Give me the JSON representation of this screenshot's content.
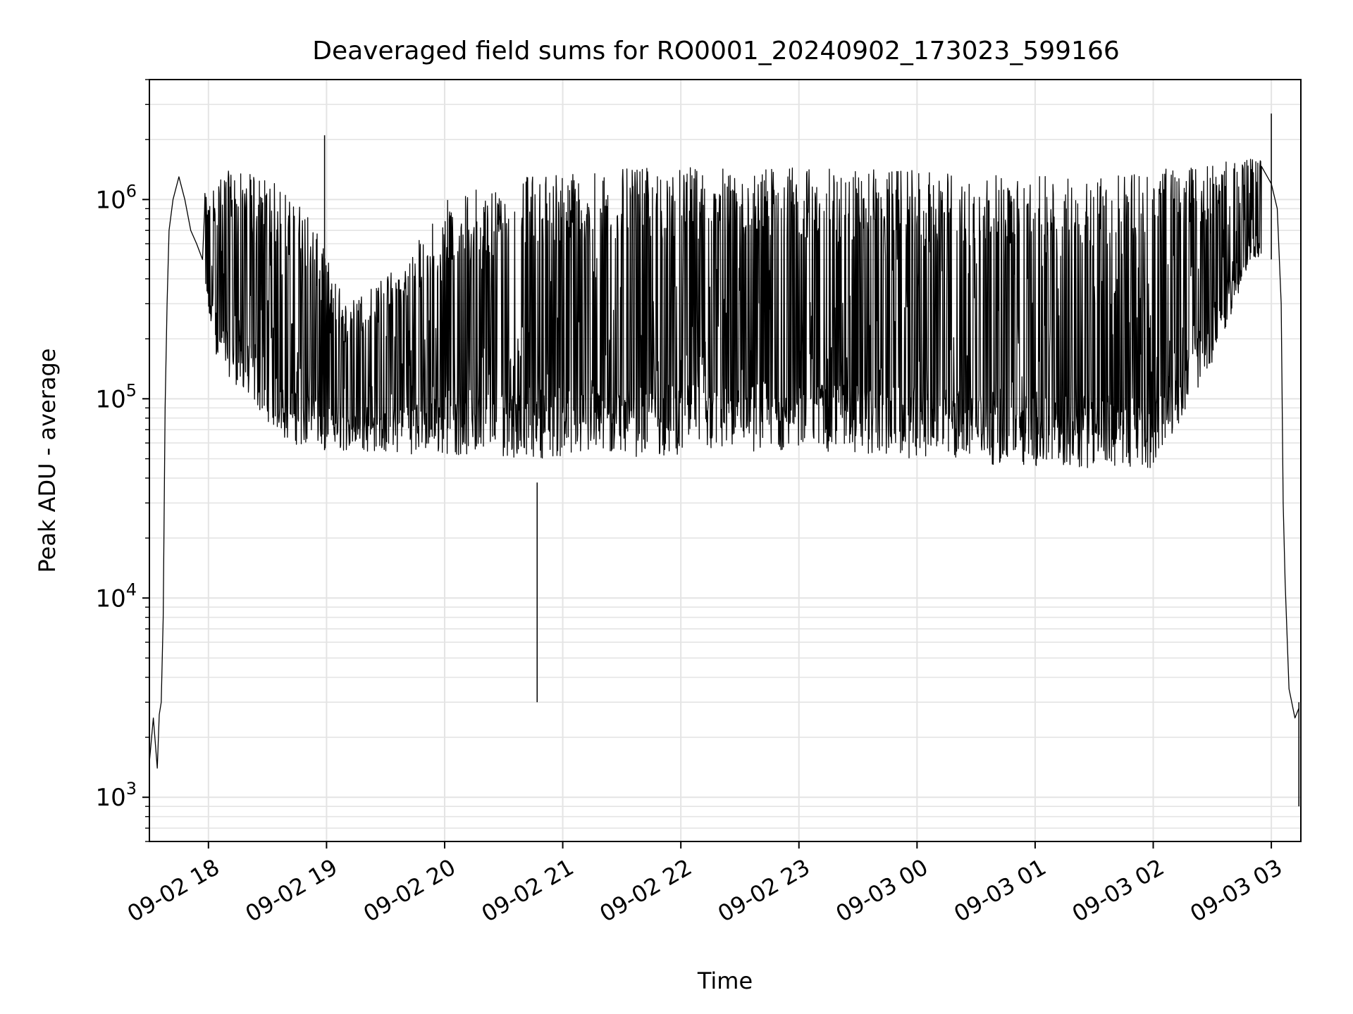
{
  "chart_data": {
    "type": "line",
    "title": "Deaveraged field sums for RO0001_20240902_173023_599166",
    "xlabel": "Time",
    "ylabel": "Peak ADU - average",
    "yscale": "log",
    "ylim": [
      600,
      4000000
    ],
    "xlim": [
      "2024-09-02 17:30",
      "2024-09-03 03:15"
    ],
    "grid": true,
    "legend": false,
    "line_color": "#000000",
    "x_ticks": [
      {
        "t": "2024-09-02 18:00",
        "label": "09-02 18"
      },
      {
        "t": "2024-09-02 19:00",
        "label": "09-02 19"
      },
      {
        "t": "2024-09-02 20:00",
        "label": "09-02 20"
      },
      {
        "t": "2024-09-02 21:00",
        "label": "09-02 21"
      },
      {
        "t": "2024-09-02 22:00",
        "label": "09-02 22"
      },
      {
        "t": "2024-09-02 23:00",
        "label": "09-02 23"
      },
      {
        "t": "2024-09-03 00:00",
        "label": "09-03 00"
      },
      {
        "t": "2024-09-03 01:00",
        "label": "09-03 01"
      },
      {
        "t": "2024-09-03 02:00",
        "label": "09-03 02"
      },
      {
        "t": "2024-09-03 03:00",
        "label": "09-03 03"
      }
    ],
    "y_ticks": [
      {
        "value": 1000,
        "base": "10",
        "exp": "3"
      },
      {
        "value": 10000,
        "base": "10",
        "exp": "4"
      },
      {
        "value": 100000,
        "base": "10",
        "exp": "5"
      },
      {
        "value": 1000000,
        "base": "10",
        "exp": "6"
      }
    ],
    "series": [
      {
        "x": [
          "2024-09-02 17:30",
          "2024-09-02 17:32",
          "2024-09-02 17:34",
          "2024-09-02 17:35",
          "2024-09-02 17:36",
          "2024-09-02 17:37",
          "2024-09-02 17:38",
          "2024-09-02 17:39",
          "2024-09-02 17:40",
          "2024-09-02 17:42",
          "2024-09-02 17:45",
          "2024-09-02 17:48",
          "2024-09-02 17:51",
          "2024-09-02 17:54",
          "2024-09-02 17:57",
          "2024-09-02 18:00",
          "2024-09-02 18:10",
          "2024-09-02 18:20",
          "2024-09-02 18:30",
          "2024-09-02 18:40",
          "2024-09-02 18:50",
          "2024-09-02 19:00",
          "2024-09-02 19:30",
          "2024-09-02 20:00",
          "2024-09-02 20:30",
          "2024-09-02 21:00",
          "2024-09-02 21:30",
          "2024-09-02 22:00",
          "2024-09-02 23:00",
          "2024-09-03 00:00",
          "2024-09-03 01:00",
          "2024-09-03 02:00",
          "2024-09-03 02:30",
          "2024-09-03 02:50",
          "2024-09-03 03:00",
          "2024-09-03 03:03",
          "2024-09-03 03:05",
          "2024-09-03 03:06",
          "2024-09-03 03:07",
          "2024-09-03 03:09",
          "2024-09-03 03:12",
          "2024-09-03 03:14"
        ],
        "y": [
          1500,
          2500,
          1400,
          2600,
          3000,
          8000,
          90000,
          300000,
          700000,
          1000000,
          1300000,
          1000000,
          700000,
          600000,
          500000,
          800000,
          700000,
          300000,
          250000,
          150000,
          120000,
          100000,
          90000,
          85000,
          80000,
          75000,
          80000,
          100000,
          300000,
          400000,
          500000,
          600000,
          700000,
          1000000,
          1200000,
          900000,
          300000,
          30000,
          12000,
          3500,
          2500,
          2800
        ],
        "low_envelope": [
          [
            "2024-09-02 17:55",
            400000
          ],
          [
            "2024-09-02 18:05",
            150000
          ],
          [
            "2024-09-02 18:20",
            100000
          ],
          [
            "2024-09-02 18:40",
            60000
          ],
          [
            "2024-09-02 19:00",
            55000
          ],
          [
            "2024-09-02 20:00",
            52000
          ],
          [
            "2024-09-02 21:00",
            50000
          ],
          [
            "2024-09-02 22:00",
            52000
          ],
          [
            "2024-09-02 23:00",
            55000
          ],
          [
            "2024-09-03 00:00",
            50000
          ],
          [
            "2024-09-03 01:00",
            45000
          ],
          [
            "2024-09-03 02:00",
            45000
          ],
          [
            "2024-09-03 02:30",
            150000
          ],
          [
            "2024-09-03 02:50",
            500000
          ]
        ],
        "high_envelope": [
          [
            "2024-09-02 17:55",
            1000000
          ],
          [
            "2024-09-02 18:10",
            1400000
          ],
          [
            "2024-09-02 18:30",
            1300000
          ],
          [
            "2024-09-02 18:50",
            900000
          ],
          [
            "2024-09-02 19:10",
            300000
          ],
          [
            "2024-09-02 19:40",
            500000
          ],
          [
            "2024-09-02 20:00",
            1000000
          ],
          [
            "2024-09-02 20:30",
            1300000
          ],
          [
            "2024-09-02 21:00",
            1400000
          ],
          [
            "2024-09-02 22:00",
            1450000
          ],
          [
            "2024-09-02 23:00",
            1450000
          ],
          [
            "2024-09-03 00:00",
            1400000
          ],
          [
            "2024-09-03 01:00",
            1300000
          ],
          [
            "2024-09-03 02:00",
            1400000
          ],
          [
            "2024-09-03 02:50",
            1600000
          ]
        ],
        "peaks": [
          [
            "2024-09-02 18:59",
            2100000
          ],
          [
            "2024-09-02 20:47",
            38000
          ],
          [
            "2024-09-03 03:00",
            2700000
          ],
          [
            "2024-09-03 03:14",
            900
          ]
        ]
      }
    ]
  }
}
